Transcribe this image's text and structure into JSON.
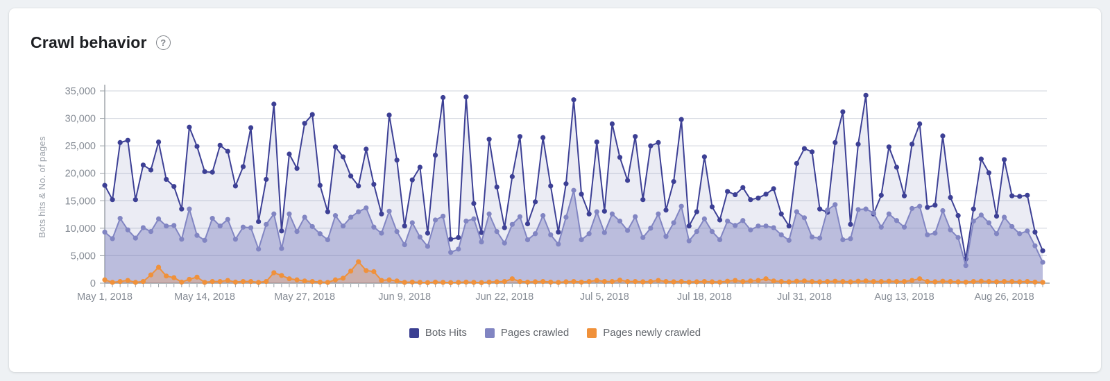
{
  "page": {
    "background": "#eef1f4",
    "card_background": "#ffffff"
  },
  "header": {
    "title": "Crawl behavior",
    "help_glyph": "?"
  },
  "chart_data": {
    "type": "area",
    "title": "Crawl behavior",
    "xlabel": "",
    "ylabel": "Bots hits & No. of pages",
    "ylim": [
      0,
      35000
    ],
    "grid": true,
    "legend_position": "bottom",
    "colors": {
      "axis": "#9aa0a6",
      "gridline": "#cfd3db",
      "tick_text": "#858b94"
    },
    "y_ticks": [
      {
        "value": 0,
        "label": "0"
      },
      {
        "value": 5000,
        "label": "5,000"
      },
      {
        "value": 10000,
        "label": "10,000"
      },
      {
        "value": 15000,
        "label": "15,000"
      },
      {
        "value": 20000,
        "label": "20,000"
      },
      {
        "value": 25000,
        "label": "25,000"
      },
      {
        "value": 30000,
        "label": "30,000"
      },
      {
        "value": 35000,
        "label": "35,000"
      }
    ],
    "x_ticks": [
      {
        "day": 0,
        "label": "May 1, 2018"
      },
      {
        "day": 13,
        "label": "May 14, 2018"
      },
      {
        "day": 26,
        "label": "May 27, 2018"
      },
      {
        "day": 39,
        "label": "Jun 9, 2018"
      },
      {
        "day": 52,
        "label": "Jun 22, 2018"
      },
      {
        "day": 65,
        "label": "Jul 5, 2018"
      },
      {
        "day": 78,
        "label": "Jul 18, 2018"
      },
      {
        "day": 91,
        "label": "Jul 31, 2018"
      },
      {
        "day": 104,
        "label": "Aug 13, 2018"
      },
      {
        "day": 117,
        "label": "Aug 26, 2018"
      }
    ],
    "x_range": {
      "start": "May 1, 2018",
      "end": "Aug 31, 2018",
      "points": 123
    },
    "series": [
      {
        "name": "Bots Hits",
        "color": "#3d4095",
        "fill": "rgba(63,67,150,0.10)",
        "values": [
          17800,
          15200,
          25600,
          26000,
          15200,
          21500,
          20600,
          25700,
          18900,
          17600,
          13500,
          28400,
          24900,
          20300,
          20200,
          25100,
          24000,
          17700,
          21200,
          28300,
          11200,
          18900,
          32600,
          9500,
          23500,
          20900,
          29100,
          30700,
          17800,
          13000,
          24800,
          23000,
          19500,
          17700,
          24400,
          18000,
          12600,
          30600,
          22400,
          10400,
          18800,
          21100,
          9100,
          23300,
          33800,
          8000,
          8300,
          33900,
          14500,
          9200,
          26200,
          17500,
          10100,
          19400,
          26700,
          10800,
          14800,
          26500,
          17700,
          9300,
          18100,
          33400,
          16200,
          12600,
          25700,
          13100,
          29000,
          22900,
          18700,
          26700,
          15200,
          25000,
          25600,
          13300,
          18500,
          29800,
          10400,
          13000,
          23000,
          13900,
          11500,
          16700,
          16100,
          17400,
          15200,
          15500,
          16200,
          17200,
          12600,
          10400,
          21800,
          24500,
          23900,
          13500,
          12900,
          25600,
          31200,
          10700,
          25300,
          34200,
          12600,
          16000,
          24800,
          21100,
          15900,
          25300,
          29000,
          13800,
          14200,
          26800,
          15600,
          12300,
          4400,
          13500,
          22600,
          20100,
          12200,
          22500,
          15900,
          15800,
          16000,
          9300,
          5900
        ]
      },
      {
        "name": "Pages crawled",
        "color": "#8185c2",
        "fill": "rgba(129,133,194,0.45)",
        "values": [
          9300,
          8100,
          11800,
          9700,
          8200,
          10100,
          9400,
          11700,
          10400,
          10500,
          8000,
          13500,
          8700,
          7800,
          11800,
          10400,
          11600,
          8000,
          10200,
          10100,
          6200,
          10700,
          12600,
          6300,
          12600,
          9400,
          12000,
          10300,
          9000,
          7900,
          12300,
          10400,
          12000,
          13000,
          13700,
          10200,
          9100,
          13100,
          9400,
          7000,
          11000,
          8400,
          6700,
          11500,
          12200,
          5600,
          6200,
          11300,
          11700,
          7500,
          12600,
          9400,
          7300,
          10700,
          12100,
          7900,
          9000,
          12300,
          8800,
          7100,
          12000,
          16900,
          7900,
          9000,
          13000,
          9200,
          12600,
          11300,
          9600,
          12100,
          8300,
          10000,
          12600,
          8500,
          11000,
          14000,
          7700,
          9400,
          11700,
          9400,
          7900,
          11300,
          10500,
          11400,
          9700,
          10400,
          10400,
          10100,
          8800,
          7800,
          13000,
          11900,
          8400,
          8200,
          13300,
          14300,
          7900,
          8100,
          13400,
          13500,
          12800,
          10200,
          12600,
          11400,
          10200,
          13600,
          14000,
          8800,
          9100,
          13200,
          9700,
          8300,
          3200,
          11300,
          12400,
          11000,
          9000,
          12000,
          10300,
          9000,
          9500,
          6800,
          3800
        ]
      },
      {
        "name": "Pages newly crawled",
        "color": "#f0913a",
        "fill": "rgba(240,145,58,0.28)",
        "values": [
          600,
          150,
          300,
          500,
          150,
          300,
          1500,
          2900,
          1300,
          1000,
          200,
          700,
          1100,
          150,
          300,
          300,
          500,
          200,
          300,
          300,
          150,
          300,
          1900,
          1400,
          800,
          600,
          400,
          300,
          200,
          150,
          600,
          900,
          2200,
          3900,
          2300,
          2100,
          500,
          600,
          400,
          150,
          200,
          150,
          100,
          200,
          150,
          100,
          150,
          200,
          150,
          100,
          200,
          250,
          300,
          800,
          300,
          200,
          250,
          300,
          200,
          150,
          250,
          300,
          200,
          300,
          500,
          300,
          300,
          550,
          300,
          300,
          250,
          300,
          500,
          300,
          250,
          300,
          200,
          250,
          300,
          250,
          200,
          350,
          500,
          300,
          400,
          500,
          800,
          400,
          300,
          250,
          350,
          400,
          300,
          250,
          300,
          350,
          300,
          250,
          350,
          400,
          300,
          300,
          350,
          300,
          300,
          500,
          800,
          300,
          250,
          350,
          300,
          250,
          200,
          300,
          350,
          300,
          250,
          300,
          300,
          250,
          300,
          200,
          150
        ]
      }
    ]
  },
  "legend": {
    "items": [
      {
        "label": "Bots Hits",
        "color": "#3b3f92"
      },
      {
        "label": "Pages crawled",
        "color": "#8185c2"
      },
      {
        "label": "Pages newly crawled",
        "color": "#f0913a"
      }
    ]
  }
}
